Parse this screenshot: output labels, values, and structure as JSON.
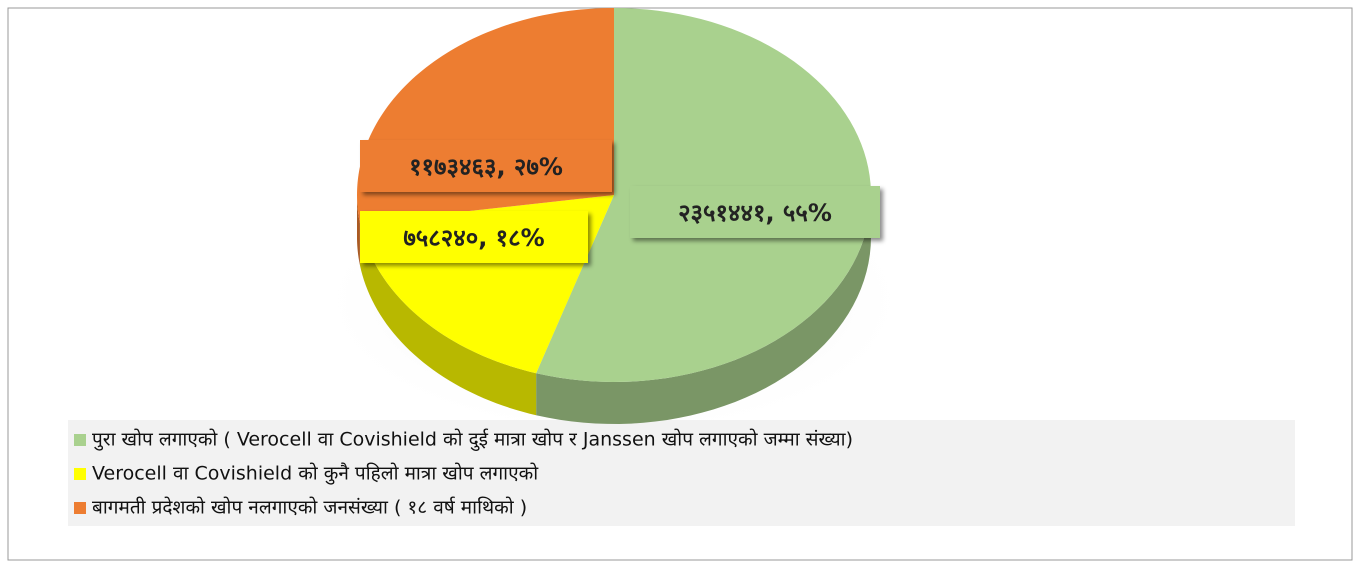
{
  "chart_data": {
    "type": "pie",
    "categories": [
      "पुरा खोप लगाएको ( Verocell वा Covishield को दुई मात्रा खोप र Janssen खोप लगाएको जम्मा संख्या)",
      "Verocell वा Covishield को कुनै पहिलो मात्रा खोप लगाएको",
      "बागमती प्रदेशको खोप नलगाएको जनसंख्या ( १८ वर्ष माथिको )"
    ],
    "values": [
      2351441,
      758240,
      1173463
    ],
    "value_labels": [
      "२३५१४४१, ५५%",
      "७५८२४०, १८%",
      "११७३४६३, २७%"
    ],
    "colors": [
      "#a9d18e",
      "#ffff00",
      "#ed7d31"
    ],
    "legend": "bottom-left"
  }
}
